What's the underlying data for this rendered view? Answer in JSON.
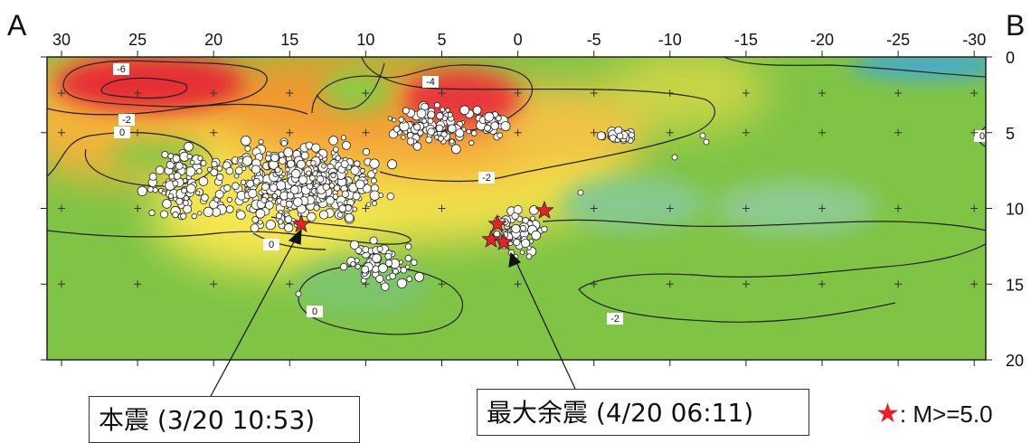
{
  "labels": {
    "left": "A",
    "right": "B"
  },
  "x_ticks": [
    "30",
    "25",
    "20",
    "15",
    "10",
    "5",
    "0",
    "-5",
    "-10",
    "-15",
    "-20",
    "-25",
    "-30"
  ],
  "y_ticks": [
    "0",
    "5",
    "10",
    "15",
    "20"
  ],
  "contour_labels": [
    "-6",
    "-4",
    "-2",
    "0",
    "-2",
    "0",
    "-2",
    "0",
    "0"
  ],
  "annotations": {
    "mainshock": "本震 (3/20 10:53)",
    "aftershock": "最大余震 (4/20 06:11)"
  },
  "legend": {
    "symbol": "★",
    "text": ": M>=5.0"
  },
  "colors": {
    "green": "#7cc242",
    "yellow": "#f5e84a",
    "orange": "#f39a2a",
    "red": "#e8303a",
    "blue": "#3fa8e0",
    "star": "#e8202a"
  }
}
